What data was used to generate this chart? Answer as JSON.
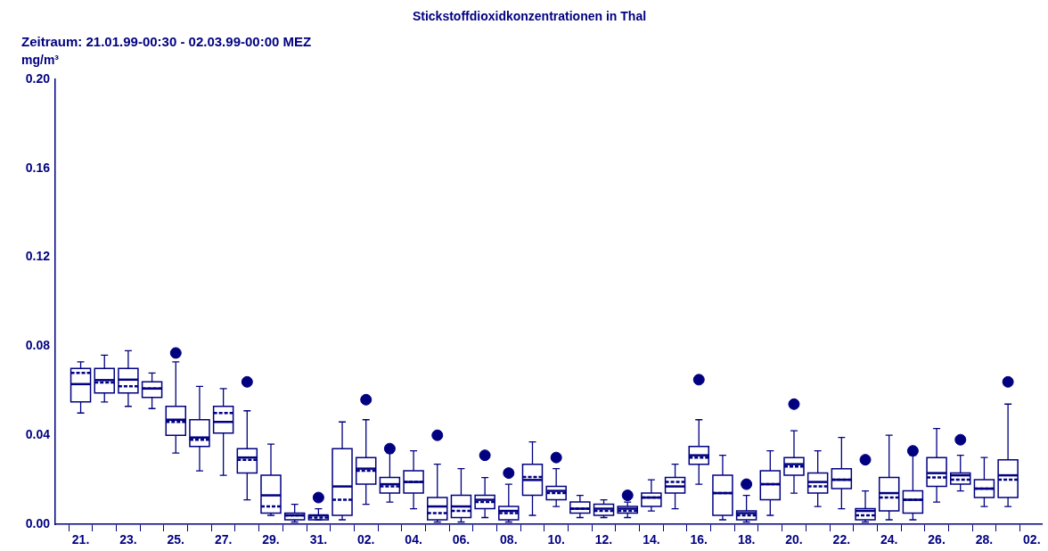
{
  "chart_data": {
    "type": "box",
    "title": "Stickstoffdioxidkonzentrationen in Thal",
    "subtitle": "Zeitraum: 21.01.99-00:30 - 02.03.99-00:00 MEZ",
    "ylabel": "mg/m³",
    "categories": [
      "21.",
      null,
      "23.",
      null,
      "25.",
      null,
      "27.",
      null,
      "29.",
      null,
      "31.",
      null,
      "02.",
      null,
      "04.",
      null,
      "06.",
      null,
      "08.",
      null,
      "10.",
      null,
      "12.",
      null,
      "14.",
      null,
      "16.",
      null,
      "18.",
      null,
      "20.",
      null,
      "22.",
      null,
      "24.",
      null,
      "26.",
      null,
      "28.",
      null,
      "02."
    ],
    "color": "#000080",
    "ylim": [
      0,
      0.2
    ],
    "yticks": [
      {
        "value": 0,
        "label": "0.00"
      },
      {
        "value": 0.04,
        "label": "0.04"
      },
      {
        "value": 0.08,
        "label": "0.08"
      },
      {
        "value": 0.12,
        "label": "0.12"
      },
      {
        "value": 0.16,
        "label": "0.16"
      },
      {
        "value": 0.2,
        "label": "0.20"
      }
    ],
    "boxes": [
      {
        "low": 0.05,
        "q1": 0.055,
        "median": 0.063,
        "q3": 0.07,
        "high": 0.073,
        "mean": 0.068
      },
      {
        "low": 0.055,
        "q1": 0.059,
        "median": 0.0648,
        "q3": 0.07,
        "high": 0.076,
        "mean": 0.0637
      },
      {
        "low": 0.053,
        "q1": 0.059,
        "median": 0.065,
        "q3": 0.07,
        "high": 0.078,
        "mean": 0.062
      },
      {
        "low": 0.052,
        "q1": 0.057,
        "median": 0.061,
        "q3": 0.064,
        "high": 0.068,
        "mean": 0.061
      },
      {
        "low": 0.032,
        "q1": 0.04,
        "median": 0.047,
        "q3": 0.053,
        "high": 0.073,
        "mean": 0.046,
        "outliers": [
          0.077
        ]
      },
      {
        "low": 0.024,
        "q1": 0.035,
        "median": 0.039,
        "q3": 0.047,
        "high": 0.062,
        "mean": 0.038
      },
      {
        "low": 0.022,
        "q1": 0.041,
        "median": 0.046,
        "q3": 0.053,
        "high": 0.061,
        "mean": 0.05
      },
      {
        "low": 0.011,
        "q1": 0.023,
        "median": 0.03,
        "q3": 0.034,
        "high": 0.051,
        "mean": 0.029,
        "outliers": [
          0.064
        ]
      },
      {
        "low": 0.004,
        "q1": 0.005,
        "median": 0.013,
        "q3": 0.022,
        "high": 0.036,
        "mean": 0.008
      },
      {
        "low": 0.001,
        "q1": 0.002,
        "median": 0.004,
        "q3": 0.005,
        "high": 0.009,
        "mean": 0.004
      },
      {
        "low": 0.002,
        "q1": 0.002,
        "median": 0.004,
        "q3": 0.004,
        "high": 0.007,
        "mean": 0.003,
        "outliers": [
          0.012
        ]
      },
      {
        "low": 0.002,
        "q1": 0.004,
        "median": 0.017,
        "q3": 0.034,
        "high": 0.046,
        "mean": 0.011
      },
      {
        "low": 0.009,
        "q1": 0.018,
        "median": 0.025,
        "q3": 0.03,
        "high": 0.047,
        "mean": 0.024,
        "outliers": [
          0.056
        ]
      },
      {
        "low": 0.01,
        "q1": 0.014,
        "median": 0.018,
        "q3": 0.021,
        "high": 0.032,
        "mean": 0.017,
        "outliers": [
          0.034
        ]
      },
      {
        "low": 0.007,
        "q1": 0.014,
        "median": 0.019,
        "q3": 0.024,
        "high": 0.033,
        "mean": 0.019
      },
      {
        "low": 0.001,
        "q1": 0.002,
        "median": 0.008,
        "q3": 0.012,
        "high": 0.027,
        "mean": 0.005,
        "outliers": [
          0.04
        ]
      },
      {
        "low": 0.001,
        "q1": 0.003,
        "median": 0.008,
        "q3": 0.013,
        "high": 0.025,
        "mean": 0.006
      },
      {
        "low": 0.003,
        "q1": 0.007,
        "median": 0.011,
        "q3": 0.013,
        "high": 0.021,
        "mean": 0.01,
        "outliers": [
          0.031
        ]
      },
      {
        "low": 0.001,
        "q1": 0.002,
        "median": 0.006,
        "q3": 0.008,
        "high": 0.018,
        "mean": 0.005,
        "outliers": [
          0.023
        ]
      },
      {
        "low": 0.004,
        "q1": 0.013,
        "median": 0.0199,
        "q3": 0.027,
        "high": 0.037,
        "mean": 0.0212
      },
      {
        "low": 0.008,
        "q1": 0.011,
        "median": 0.015,
        "q3": 0.017,
        "high": 0.025,
        "mean": 0.014,
        "outliers": [
          0.03
        ]
      },
      {
        "low": 0.003,
        "q1": 0.005,
        "median": 0.007,
        "q3": 0.01,
        "high": 0.013,
        "mean": 0.007
      },
      {
        "low": 0.003,
        "q1": 0.004,
        "median": 0.007,
        "q3": 0.009,
        "high": 0.011,
        "mean": 0.006
      },
      {
        "low": 0.003,
        "q1": 0.005,
        "median": 0.007,
        "q3": 0.008,
        "high": 0.01,
        "mean": 0.006,
        "outliers": [
          0.013
        ]
      },
      {
        "low": 0.006,
        "q1": 0.008,
        "median": 0.012,
        "q3": 0.014,
        "high": 0.02,
        "mean": 0.012
      },
      {
        "low": 0.007,
        "q1": 0.014,
        "median": 0.017,
        "q3": 0.021,
        "high": 0.027,
        "mean": 0.019
      },
      {
        "low": 0.018,
        "q1": 0.027,
        "median": 0.031,
        "q3": 0.035,
        "high": 0.047,
        "mean": 0.03,
        "outliers": [
          0.065
        ]
      },
      {
        "low": 0.002,
        "q1": 0.004,
        "median": 0.014,
        "q3": 0.022,
        "high": 0.031,
        "mean": 0.014
      },
      {
        "low": 0.001,
        "q1": 0.002,
        "median": 0.005,
        "q3": 0.006,
        "high": 0.013,
        "mean": 0.004,
        "outliers": [
          0.018
        ]
      },
      {
        "low": 0.004,
        "q1": 0.011,
        "median": 0.018,
        "q3": 0.024,
        "high": 0.033,
        "mean": 0.018
      },
      {
        "low": 0.014,
        "q1": 0.022,
        "median": 0.027,
        "q3": 0.03,
        "high": 0.042,
        "mean": 0.026,
        "outliers": [
          0.054
        ]
      },
      {
        "low": 0.008,
        "q1": 0.014,
        "median": 0.019,
        "q3": 0.023,
        "high": 0.033,
        "mean": 0.017
      },
      {
        "low": 0.007,
        "q1": 0.016,
        "median": 0.02,
        "q3": 0.025,
        "high": 0.039,
        "mean": 0.02
      },
      {
        "low": 0.001,
        "q1": 0.002,
        "median": 0.006,
        "q3": 0.007,
        "high": 0.015,
        "mean": 0.004,
        "outliers": [
          0.029
        ]
      },
      {
        "low": 0.002,
        "q1": 0.006,
        "median": 0.014,
        "q3": 0.021,
        "high": 0.04,
        "mean": 0.012
      },
      {
        "low": 0.002,
        "q1": 0.005,
        "median": 0.011,
        "q3": 0.015,
        "high": 0.031,
        "mean": 0.011,
        "outliers": [
          0.033
        ]
      },
      {
        "low": 0.01,
        "q1": 0.017,
        "median": 0.023,
        "q3": 0.03,
        "high": 0.043,
        "mean": 0.021
      },
      {
        "low": 0.015,
        "q1": 0.018,
        "median": 0.022,
        "q3": 0.023,
        "high": 0.031,
        "mean": 0.02,
        "outliers": [
          0.038
        ]
      },
      {
        "low": 0.008,
        "q1": 0.012,
        "median": 0.016,
        "q3": 0.02,
        "high": 0.03,
        "mean": 0.016
      },
      {
        "low": 0.008,
        "q1": 0.012,
        "median": 0.022,
        "q3": 0.029,
        "high": 0.054,
        "mean": 0.02,
        "outliers": [
          0.064
        ]
      },
      null
    ]
  }
}
